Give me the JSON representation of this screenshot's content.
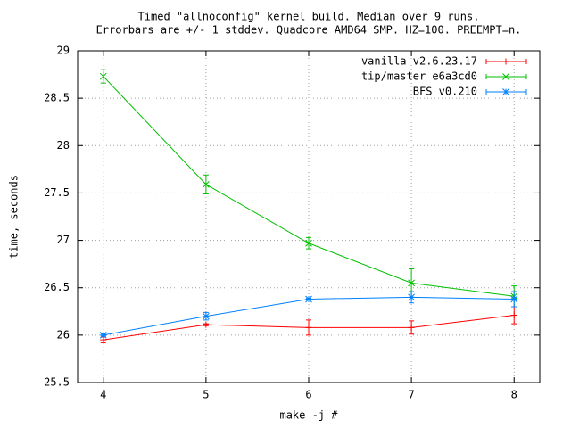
{
  "chart_data": {
    "type": "line",
    "title": "Timed \"allnoconfig\" kernel build. Median over 9 runs.",
    "subtitle": "Errorbars are +/- 1 stddev. Quadcore AMD64 SMP. HZ=100. PREEMPT=n.",
    "x_label": "make -j #",
    "y_label": "time, seconds",
    "x": [
      4,
      5,
      6,
      7,
      8
    ],
    "series": [
      {
        "name": "vanilla v2.6.23.17",
        "color": "#ff0000",
        "marker": "plus",
        "values": [
          25.95,
          26.11,
          26.08,
          26.08,
          26.21
        ],
        "errors": [
          0.03,
          0.01,
          0.08,
          0.07,
          0.09
        ]
      },
      {
        "name": "tip/master e6a3cd0",
        "color": "#00c000",
        "marker": "cross",
        "values": [
          28.73,
          27.59,
          26.97,
          26.55,
          26.41
        ],
        "errors": [
          0.07,
          0.1,
          0.06,
          0.15,
          0.11
        ]
      },
      {
        "name": "BFS v0.210",
        "color": "#0080ff",
        "marker": "star",
        "values": [
          26.0,
          26.2,
          26.38,
          26.4,
          26.38
        ],
        "errors": [
          0.01,
          0.04,
          0.01,
          0.06,
          0.08
        ]
      }
    ],
    "xlim": [
      3.75,
      8.25
    ],
    "xticks": [
      4,
      5,
      6,
      7,
      8
    ],
    "ylim": [
      25.5,
      29
    ],
    "yticks": [
      25.5,
      26,
      26.5,
      27,
      27.5,
      28,
      28.5,
      29
    ],
    "grid": true,
    "legend": "top-right"
  }
}
